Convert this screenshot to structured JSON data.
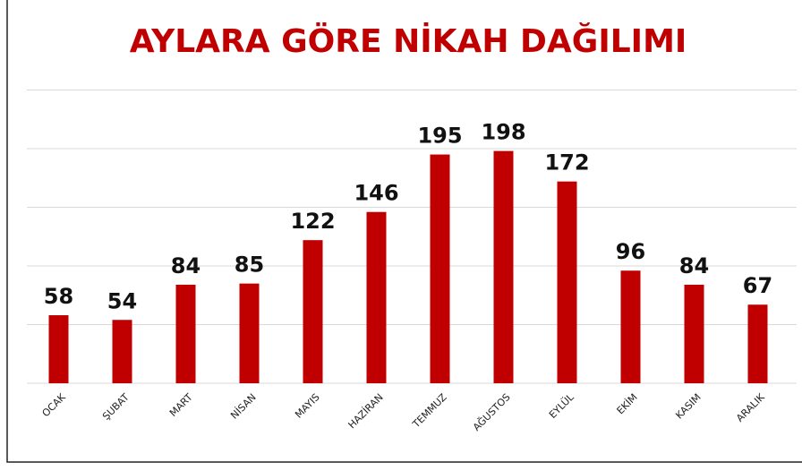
{
  "chart_data": {
    "type": "bar",
    "title": "AYLARA GÖRE NİKAH DAĞILIMI",
    "categories": [
      "OCAK",
      "ŞUBAT",
      "MART",
      "NİSAN",
      "MAYIS",
      "HAZİRAN",
      "TEMMUZ",
      "AĞUSTOS",
      "EYLÜL",
      "EKİM",
      "KASIM",
      "ARALIK"
    ],
    "values": [
      58,
      54,
      84,
      85,
      122,
      146,
      195,
      198,
      172,
      96,
      84,
      67
    ],
    "color": "#c00000",
    "ylim": [
      0,
      250
    ],
    "yticks": [
      0,
      50,
      100,
      150,
      200,
      250
    ],
    "grid": true
  }
}
